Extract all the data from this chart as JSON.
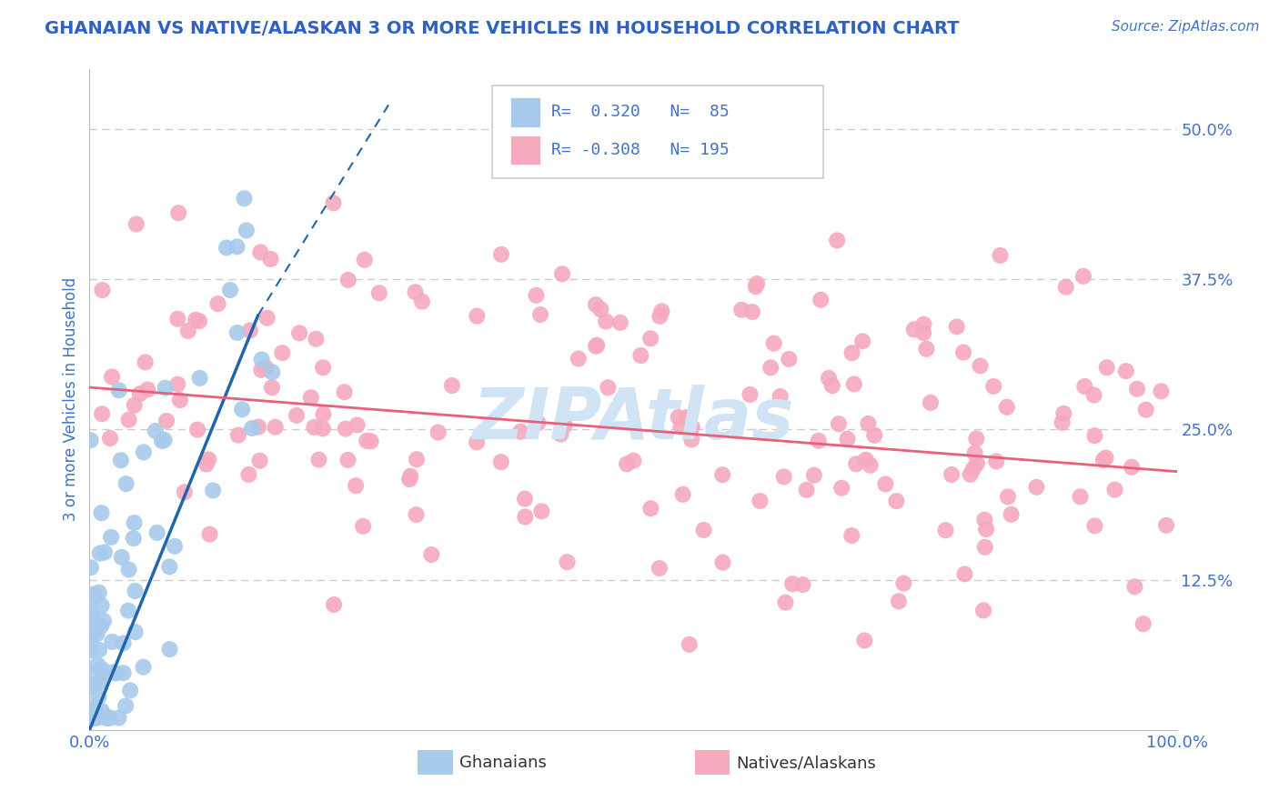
{
  "title": "GHANAIAN VS NATIVE/ALASKAN 3 OR MORE VEHICLES IN HOUSEHOLD CORRELATION CHART",
  "source_text": "Source: ZipAtlas.com",
  "ylabel": "3 or more Vehicles in Household",
  "xlim": [
    0.0,
    1.0
  ],
  "ylim": [
    0.0,
    0.55
  ],
  "xtick_labels_left": "0.0%",
  "xtick_labels_right": "100.0%",
  "ytick_labels": [
    "12.5%",
    "25.0%",
    "37.5%",
    "50.0%"
  ],
  "ytick_positions": [
    0.125,
    0.25,
    0.375,
    0.5
  ],
  "blue_color": "#A8CAEC",
  "pink_color": "#F5AABE",
  "blue_line_color": "#2166AC",
  "pink_line_color": "#E8607A",
  "title_color": "#3060C0",
  "axis_label_color": "#4472C4",
  "tick_label_color": "#4472C4",
  "source_color": "#4472C4",
  "legend_text_color": "#4472C4",
  "watermark_text": "ZIPAtlas",
  "watermark_color": "#D0E4F5",
  "background_color": "#FFFFFF",
  "grid_color": "#CCCCCC",
  "blue_seed": 42,
  "pink_seed": 99,
  "n_blue": 85,
  "n_pink": 195,
  "blue_R": 0.32,
  "pink_R": -0.308,
  "blue_line_x0": 0.0,
  "blue_line_x1": 0.155,
  "blue_line_y0": 0.0,
  "blue_line_y1": 0.345,
  "blue_line_dash_x0": 0.155,
  "blue_line_dash_x1": 0.275,
  "blue_line_dash_y0": 0.345,
  "blue_line_dash_y1": 0.52,
  "pink_line_x0": 0.0,
  "pink_line_x1": 1.0,
  "pink_line_y0": 0.285,
  "pink_line_y1": 0.215
}
